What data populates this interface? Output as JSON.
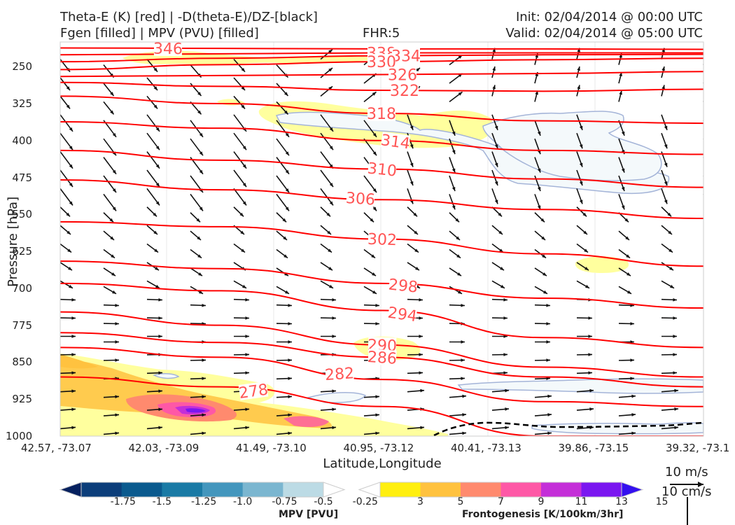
{
  "header": {
    "line1_left": "Theta-E (K) [red] | -D(theta-E)/DZ-[black]",
    "line2_left": "Fgen [filled] | MPV (PVU) [filled]",
    "fhr": "FHR:5",
    "init": "Init: 02/04/2014 @ 00:00 UTC",
    "valid": "Valid: 02/04/2014 @ 05:00 UTC"
  },
  "chart_data": {
    "type": "cross-section",
    "xlabel": "Latitude,Longitude",
    "ylabel": "Pressure [hPa]",
    "y_ticks": [
      "250",
      "325",
      "400",
      "475",
      "550",
      "625",
      "700",
      "775",
      "850",
      "925",
      "1000"
    ],
    "y_range": [
      1000,
      200
    ],
    "x_ticks": [
      "42.57, -73.07",
      "42.03, -73.09",
      "41.49, -73.10",
      "40.95, -73.12",
      "40.41, -73.13",
      "39.86, -73.15",
      "39.32, -73.1"
    ],
    "theta_e_contours": {
      "color": "#ff0000",
      "labels": [
        "346",
        "338",
        "334",
        "330",
        "326",
        "322",
        "318",
        "314",
        "310",
        "306",
        "302",
        "298",
        "294",
        "290",
        "286",
        "282",
        "278"
      ],
      "levels": [
        {
          "level": 346,
          "y": [
            212,
            213,
            214,
            214,
            215
          ]
        },
        {
          "level": 338,
          "y": [
            226,
            224,
            222,
            222,
            222
          ]
        },
        {
          "level": 334,
          "y": [
            240,
            233,
            228,
            226,
            225
          ]
        },
        {
          "level": 330,
          "y": [
            256,
            246,
            240,
            236,
            233
          ]
        },
        {
          "level": 326,
          "y": [
            270,
            268,
            266,
            264,
            260
          ]
        },
        {
          "level": 322,
          "y": [
            282,
            290,
            298,
            300,
            296
          ]
        },
        {
          "level": 318,
          "y": [
            310,
            325,
            345,
            360,
            365
          ]
        },
        {
          "level": 314,
          "y": [
            362,
            375,
            400,
            420,
            428
          ]
        },
        {
          "level": 310,
          "y": [
            420,
            440,
            458,
            478,
            495
          ]
        },
        {
          "level": 306,
          "y": [
            480,
            500,
            520,
            540,
            558
          ]
        },
        {
          "level": 302,
          "y": [
            565,
            575,
            600,
            630,
            655
          ]
        },
        {
          "level": 298,
          "y": [
            645,
            660,
            690,
            720,
            740
          ]
        },
        {
          "level": 294,
          "y": [
            690,
            705,
            745,
            800,
            820
          ]
        },
        {
          "level": 290,
          "y": [
            748,
            775,
            815,
            860,
            880
          ]
        },
        {
          "level": 286,
          "y": [
            790,
            810,
            840,
            880,
            900
          ]
        },
        {
          "level": 282,
          "y": [
            820,
            840,
            885,
            930,
            940
          ]
        },
        {
          "level": 278,
          "y": [
            880,
            900,
            940,
            1000,
            1000
          ]
        }
      ]
    },
    "zero_contour": {
      "style": "dashed",
      "color": "#000000"
    },
    "wind_scale": {
      "u_label": "10 m/s",
      "w_label": "10 cm/s"
    }
  },
  "colorbars": {
    "mpv": {
      "title": "MPV [PVU]",
      "ticks": [
        "-1.75",
        "-1.5",
        "-1.25",
        "-1.0",
        "-0.75",
        "-0.5",
        "-0.25"
      ],
      "colors": [
        "#06215f",
        "#0c3e7a",
        "#0b5a8e",
        "#1a7aa5",
        "#4396bd",
        "#7bb6d0",
        "#bcdbe5",
        "#ffffff"
      ]
    },
    "fgen": {
      "title": "Frontogenesis [K/100km/3hr]",
      "ticks": [
        "3",
        "5",
        "7",
        "9",
        "11",
        "13",
        "15"
      ],
      "colors": [
        "#ffffff",
        "#ffef0f",
        "#ffc23f",
        "#ff8a6e",
        "#fe58a6",
        "#c42fd8",
        "#7a16f0",
        "#3410ef"
      ]
    }
  }
}
